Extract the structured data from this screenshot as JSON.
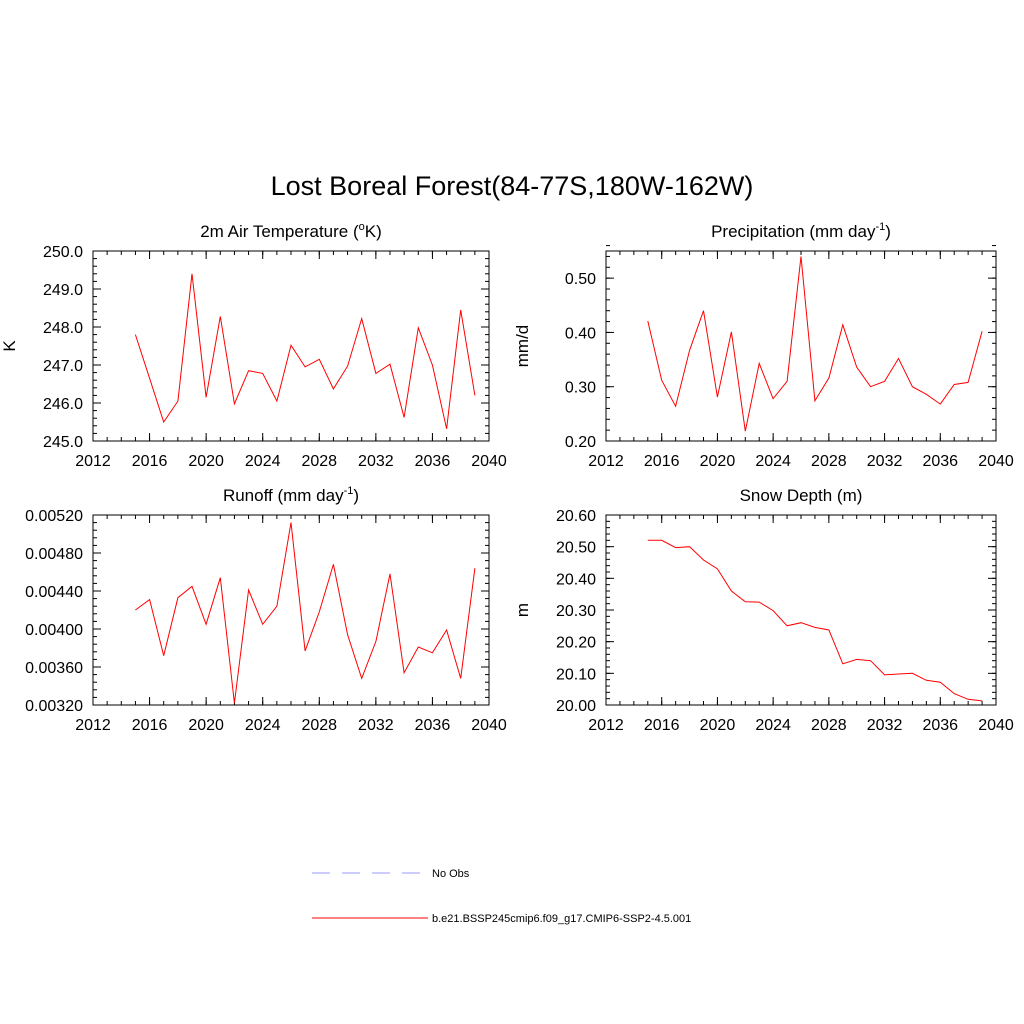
{
  "figure": {
    "title": "Lost Boreal Forest(84-77S,180W-162W)"
  },
  "legend": {
    "entries": [
      {
        "label": "No Obs",
        "color": "#9999ff",
        "style": "dashed"
      },
      {
        "label": "b.e21.BSSP245cmip6.f09_g17.CMIP6-SSP2-4.5.001",
        "color": "#ff0000",
        "style": "solid"
      }
    ]
  },
  "chart_data": [
    {
      "type": "line",
      "title": "2m Air Temperature (oK)",
      "title_parts": {
        "main": "2m Air Temperature (",
        "sup": "o",
        "tail": "K)"
      },
      "ylabel": "K",
      "xlim": [
        2012,
        2040
      ],
      "ylim": [
        245.0,
        250.0
      ],
      "xticks": [
        2012,
        2016,
        2020,
        2024,
        2028,
        2032,
        2036,
        2040
      ],
      "yticks": [
        "245.0",
        "246.0",
        "247.0",
        "248.0",
        "249.0",
        "250.0"
      ],
      "y_tick_values": [
        245.0,
        246.0,
        247.0,
        248.0,
        249.0,
        250.0
      ],
      "x_minor_step": 1,
      "y_minor_step": 0.2,
      "color": "#ff0000",
      "x": [
        2015,
        2016,
        2017,
        2018,
        2019,
        2020,
        2021,
        2022,
        2023,
        2024,
        2025,
        2026,
        2027,
        2028,
        2029,
        2030,
        2031,
        2032,
        2033,
        2034,
        2035,
        2036,
        2037,
        2038,
        2039
      ],
      "y": [
        247.8,
        246.65,
        245.5,
        246.05,
        249.4,
        246.15,
        248.28,
        245.98,
        246.85,
        246.78,
        246.05,
        247.52,
        246.95,
        247.15,
        246.37,
        246.97,
        248.22,
        246.78,
        247.02,
        245.62,
        247.98,
        247.0,
        245.32,
        248.45,
        246.2
      ]
    },
    {
      "type": "line",
      "title": "Precipitation (mm day-1)",
      "title_parts": {
        "main": "Precipitation (mm day",
        "sup": "-1",
        "tail": ")"
      },
      "ylabel": "mm/d",
      "xlim": [
        2012,
        2040
      ],
      "ylim": [
        0.2,
        0.55
      ],
      "xticks": [
        2012,
        2016,
        2020,
        2024,
        2028,
        2032,
        2036,
        2040
      ],
      "yticks": [
        "0.20",
        "0.30",
        "0.40",
        "0.50"
      ],
      "y_tick_values": [
        0.2,
        0.3,
        0.4,
        0.5
      ],
      "x_minor_step": 1,
      "y_minor_step": 0.02,
      "color": "#ff0000",
      "x": [
        2015,
        2016,
        2017,
        2018,
        2019,
        2020,
        2021,
        2022,
        2023,
        2024,
        2025,
        2026,
        2027,
        2028,
        2029,
        2030,
        2031,
        2032,
        2033,
        2034,
        2035,
        2036,
        2037,
        2038,
        2039
      ],
      "y": [
        0.421,
        0.312,
        0.264,
        0.367,
        0.44,
        0.281,
        0.401,
        0.218,
        0.343,
        0.278,
        0.31,
        0.54,
        0.274,
        0.316,
        0.414,
        0.336,
        0.3,
        0.31,
        0.352,
        0.3,
        0.286,
        0.268,
        0.304,
        0.308,
        0.402
      ]
    },
    {
      "type": "line",
      "title": "Runoff (mm day-1)",
      "title_parts": {
        "main": "Runoff (mm day",
        "sup": "-1",
        "tail": ")"
      },
      "ylabel": "",
      "xlim": [
        2012,
        2040
      ],
      "ylim": [
        0.0032,
        0.0052
      ],
      "xticks": [
        2012,
        2016,
        2020,
        2024,
        2028,
        2032,
        2036,
        2040
      ],
      "yticks": [
        "0.00320",
        "0.00360",
        "0.00400",
        "0.00440",
        "0.00480",
        "0.00520"
      ],
      "y_tick_values": [
        0.0032,
        0.0036,
        0.004,
        0.0044,
        0.0048,
        0.0052
      ],
      "x_minor_step": 1,
      "y_minor_step": 8e-05,
      "color": "#ff0000",
      "x": [
        2015,
        2016,
        2017,
        2018,
        2019,
        2020,
        2021,
        2022,
        2023,
        2024,
        2025,
        2026,
        2027,
        2028,
        2029,
        2030,
        2031,
        2032,
        2033,
        2034,
        2035,
        2036,
        2037,
        2038,
        2039
      ],
      "y": [
        0.0042,
        0.00431,
        0.00372,
        0.00433,
        0.00445,
        0.00405,
        0.00454,
        0.00322,
        0.00441,
        0.00405,
        0.00424,
        0.00512,
        0.00377,
        0.00418,
        0.00468,
        0.00394,
        0.00348,
        0.00387,
        0.00458,
        0.00354,
        0.00381,
        0.00375,
        0.00399,
        0.00348,
        0.00464
      ]
    },
    {
      "type": "line",
      "title": "Snow Depth (m)",
      "title_parts": {
        "main": "Snow Depth (m)",
        "sup": "",
        "tail": ""
      },
      "ylabel": "m",
      "xlim": [
        2012,
        2040
      ],
      "ylim": [
        20.0,
        20.6
      ],
      "xticks": [
        2012,
        2016,
        2020,
        2024,
        2028,
        2032,
        2036,
        2040
      ],
      "yticks": [
        "20.00",
        "20.10",
        "20.20",
        "20.30",
        "20.40",
        "20.50",
        "20.60"
      ],
      "y_tick_values": [
        20.0,
        20.1,
        20.2,
        20.3,
        20.4,
        20.5,
        20.6
      ],
      "x_minor_step": 1,
      "y_minor_step": 0.02,
      "color": "#ff0000",
      "x": [
        2015,
        2016,
        2017,
        2018,
        2019,
        2020,
        2021,
        2022,
        2023,
        2024,
        2025,
        2026,
        2027,
        2028,
        2029,
        2030,
        2031,
        2032,
        2033,
        2034,
        2035,
        2036,
        2037,
        2038,
        2039
      ],
      "y": [
        20.52,
        20.52,
        20.497,
        20.5,
        20.458,
        20.43,
        20.36,
        20.326,
        20.325,
        20.298,
        20.25,
        20.26,
        20.245,
        20.237,
        20.13,
        20.144,
        20.14,
        20.095,
        20.098,
        20.1,
        20.078,
        20.072,
        20.036,
        20.018,
        20.013
      ]
    }
  ]
}
